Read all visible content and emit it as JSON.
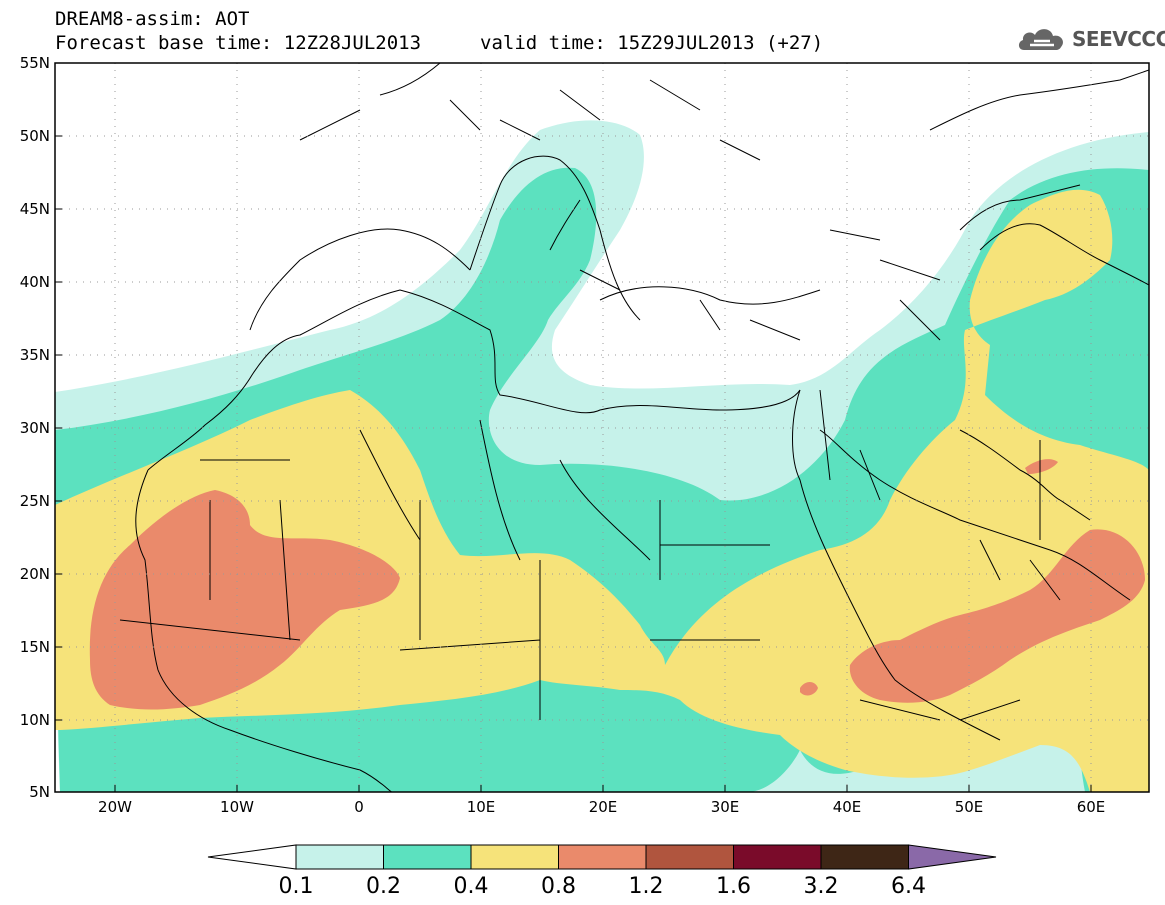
{
  "header": {
    "title": "DREAM8-assim: AOT",
    "base_time": "Forecast base time: 12Z28JUL2013",
    "valid_time": "valid time: 15Z29JUL2013 (+27)"
  },
  "logo": {
    "icon": "cloud-icon",
    "text": "SEEVCCC"
  },
  "map": {
    "lat_labels": [
      "55N",
      "50N",
      "45N",
      "40N",
      "35N",
      "30N",
      "25N",
      "20N",
      "15N",
      "10N",
      "5N"
    ],
    "lon_labels": [
      "20W",
      "10W",
      "0",
      "10E",
      "20E",
      "30E",
      "40E",
      "50E",
      "60E"
    ]
  },
  "colorbar": {
    "labels": [
      "0.1",
      "0.2",
      "0.4",
      "0.8",
      "1.2",
      "1.6",
      "3.2",
      "6.4"
    ],
    "colors": [
      "#c6f2ea",
      "#5ce1bf",
      "#f6e37a",
      "#ea8a6b",
      "#b0553e",
      "#7a0b2a",
      "#3e2616",
      "#8a69a8"
    ]
  },
  "palette": {
    "lvl1": "#c6f2ea",
    "lvl2": "#5ce1bf",
    "lvl3": "#f6e37a",
    "lvl4": "#ea8a6b"
  }
}
